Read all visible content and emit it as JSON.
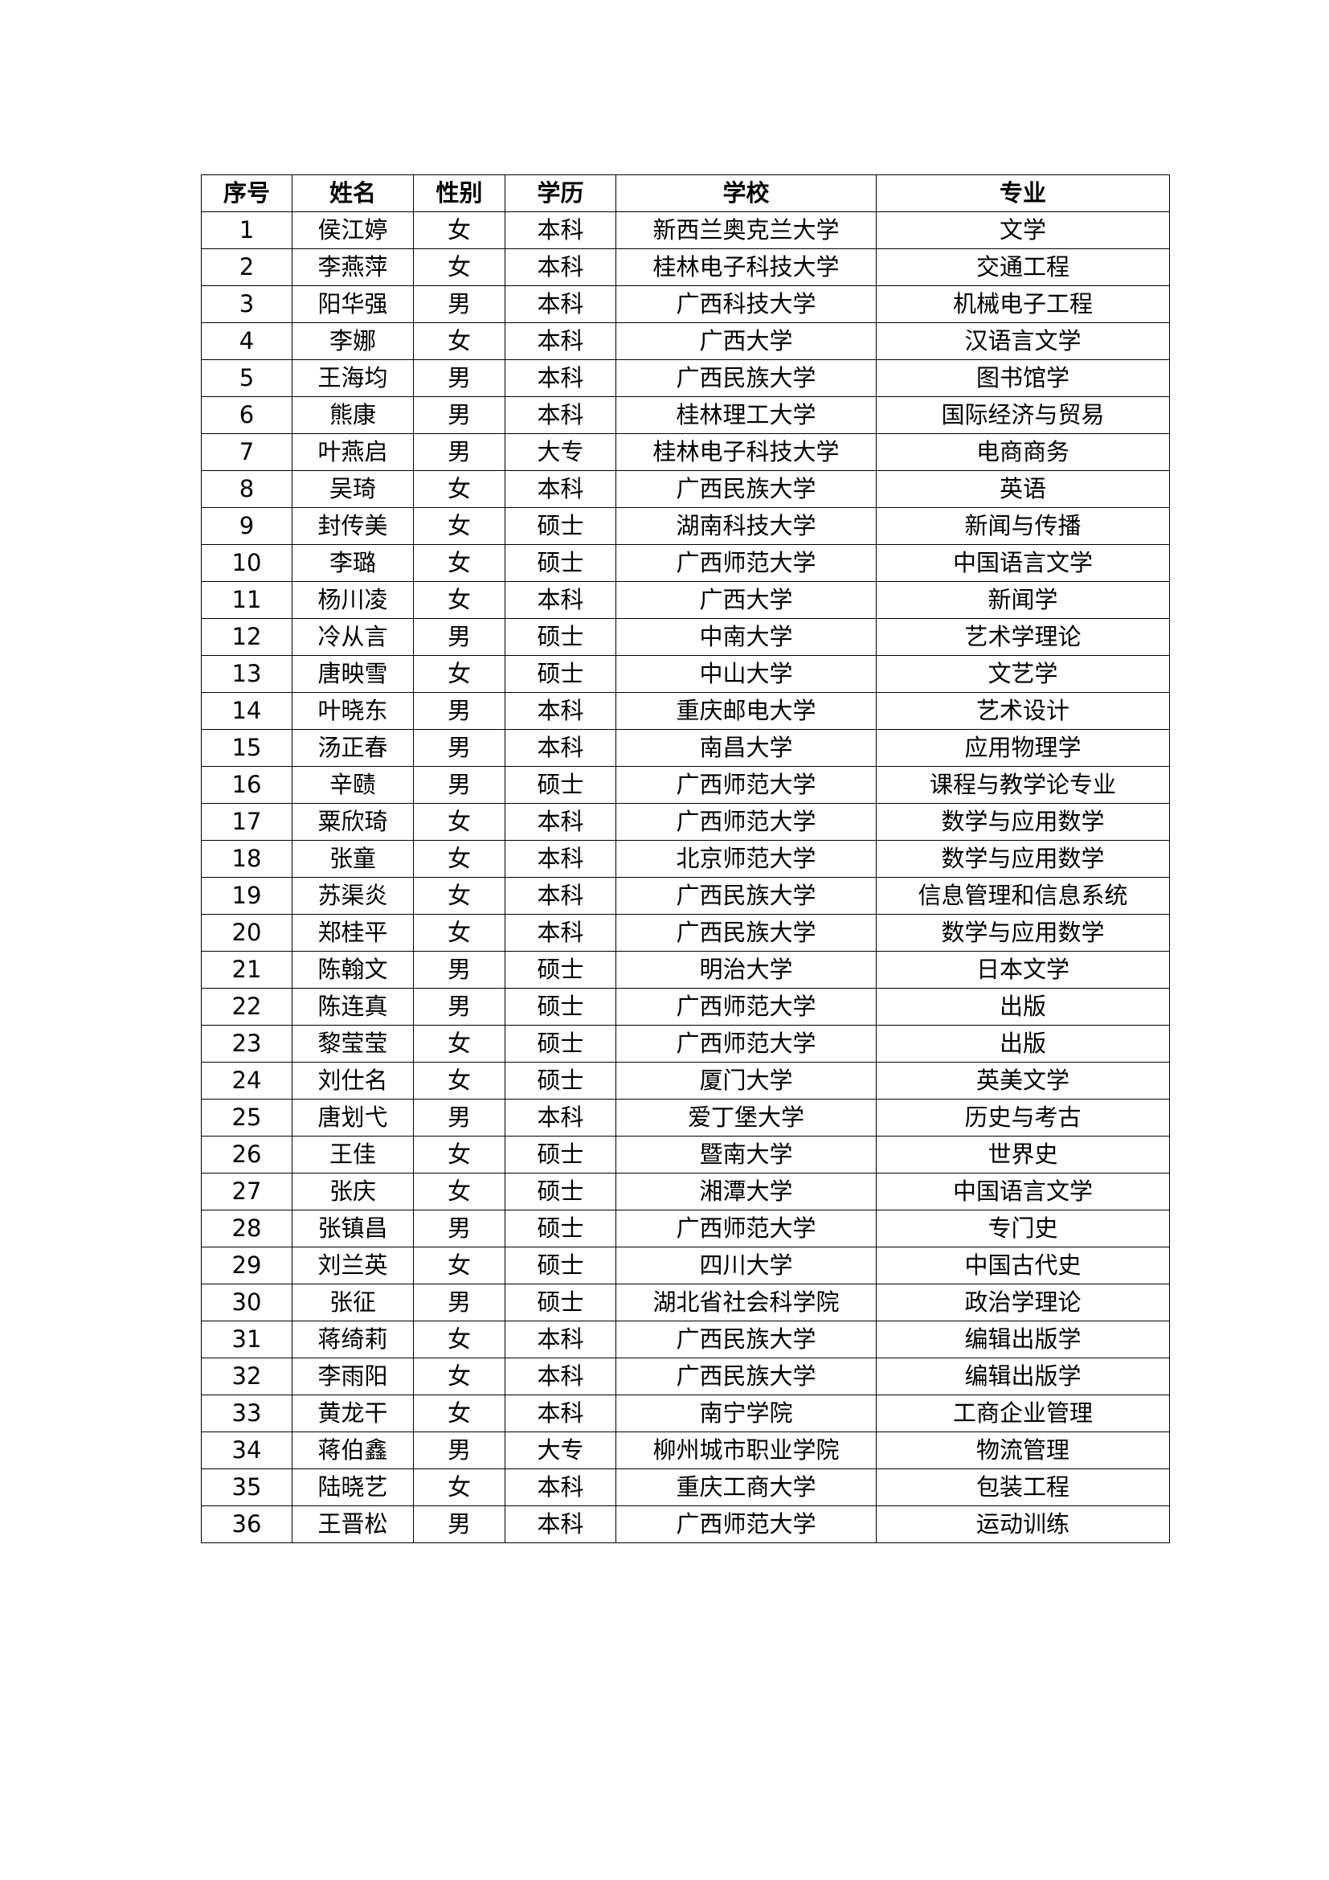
{
  "table": {
    "headers": [
      "序号",
      "姓名",
      "性别",
      "学历",
      "学校",
      "专业"
    ],
    "rows": [
      [
        "1",
        "侯江婷",
        "女",
        "本科",
        "新西兰奥克兰大学",
        "文学"
      ],
      [
        "2",
        "李燕萍",
        "女",
        "本科",
        "桂林电子科技大学",
        "交通工程"
      ],
      [
        "3",
        "阳华强",
        "男",
        "本科",
        "广西科技大学",
        "机械电子工程"
      ],
      [
        "4",
        "李娜",
        "女",
        "本科",
        "广西大学",
        "汉语言文学"
      ],
      [
        "5",
        "王海均",
        "男",
        "本科",
        "广西民族大学",
        "图书馆学"
      ],
      [
        "6",
        "熊康",
        "男",
        "本科",
        "桂林理工大学",
        "国际经济与贸易"
      ],
      [
        "7",
        "叶燕启",
        "男",
        "大专",
        "桂林电子科技大学",
        "电商商务"
      ],
      [
        "8",
        "吴琦",
        "女",
        "本科",
        "广西民族大学",
        "英语"
      ],
      [
        "9",
        "封传美",
        "女",
        "硕士",
        "湖南科技大学",
        "新闻与传播"
      ],
      [
        "10",
        "李璐",
        "女",
        "硕士",
        "广西师范大学",
        "中国语言文学"
      ],
      [
        "11",
        "杨川凌",
        "女",
        "本科",
        "广西大学",
        "新闻学"
      ],
      [
        "12",
        "冷从言",
        "男",
        "硕士",
        "中南大学",
        "艺术学理论"
      ],
      [
        "13",
        "唐映雪",
        "女",
        "硕士",
        "中山大学",
        "文艺学"
      ],
      [
        "14",
        "叶晓东",
        "男",
        "本科",
        "重庆邮电大学",
        "艺术设计"
      ],
      [
        "15",
        "汤正春",
        "男",
        "本科",
        "南昌大学",
        "应用物理学"
      ],
      [
        "16",
        "辛赜",
        "男",
        "硕士",
        "广西师范大学",
        "课程与教学论专业"
      ],
      [
        "17",
        "粟欣琦",
        "女",
        "本科",
        "广西师范大学",
        "数学与应用数学"
      ],
      [
        "18",
        "张童",
        "女",
        "本科",
        "北京师范大学",
        "数学与应用数学"
      ],
      [
        "19",
        "苏渠炎",
        "女",
        "本科",
        "广西民族大学",
        "信息管理和信息系统"
      ],
      [
        "20",
        "郑桂平",
        "女",
        "本科",
        "广西民族大学",
        "数学与应用数学"
      ],
      [
        "21",
        "陈翰文",
        "男",
        "硕士",
        "明治大学",
        "日本文学"
      ],
      [
        "22",
        "陈连真",
        "男",
        "硕士",
        "广西师范大学",
        "出版"
      ],
      [
        "23",
        "黎莹莹",
        "女",
        "硕士",
        "广西师范大学",
        "出版"
      ],
      [
        "24",
        "刘仕名",
        "女",
        "硕士",
        "厦门大学",
        "英美文学"
      ],
      [
        "25",
        "唐划弋",
        "男",
        "本科",
        "爱丁堡大学",
        "历史与考古"
      ],
      [
        "26",
        "王佳",
        "女",
        "硕士",
        "暨南大学",
        "世界史"
      ],
      [
        "27",
        "张庆",
        "女",
        "硕士",
        "湘潭大学",
        "中国语言文学"
      ],
      [
        "28",
        "张镇昌",
        "男",
        "硕士",
        "广西师范大学",
        "专门史"
      ],
      [
        "29",
        "刘兰英",
        "女",
        "硕士",
        "四川大学",
        "中国古代史"
      ],
      [
        "30",
        "张征",
        "男",
        "硕士",
        "湖北省社会科学院",
        "政治学理论"
      ],
      [
        "31",
        "蒋绮莉",
        "女",
        "本科",
        "广西民族大学",
        "编辑出版学"
      ],
      [
        "32",
        "李雨阳",
        "女",
        "本科",
        "广西民族大学",
        "编辑出版学"
      ],
      [
        "33",
        "黄龙干",
        "女",
        "本科",
        "南宁学院",
        "工商企业管理"
      ],
      [
        "34",
        "蒋伯鑫",
        "男",
        "大专",
        "柳州城市职业学院",
        "物流管理"
      ],
      [
        "35",
        "陆晓艺",
        "女",
        "本科",
        "重庆工商大学",
        "包装工程"
      ],
      [
        "36",
        "王晋松",
        "男",
        "本科",
        "广西师范大学",
        "运动训练"
      ]
    ]
  }
}
